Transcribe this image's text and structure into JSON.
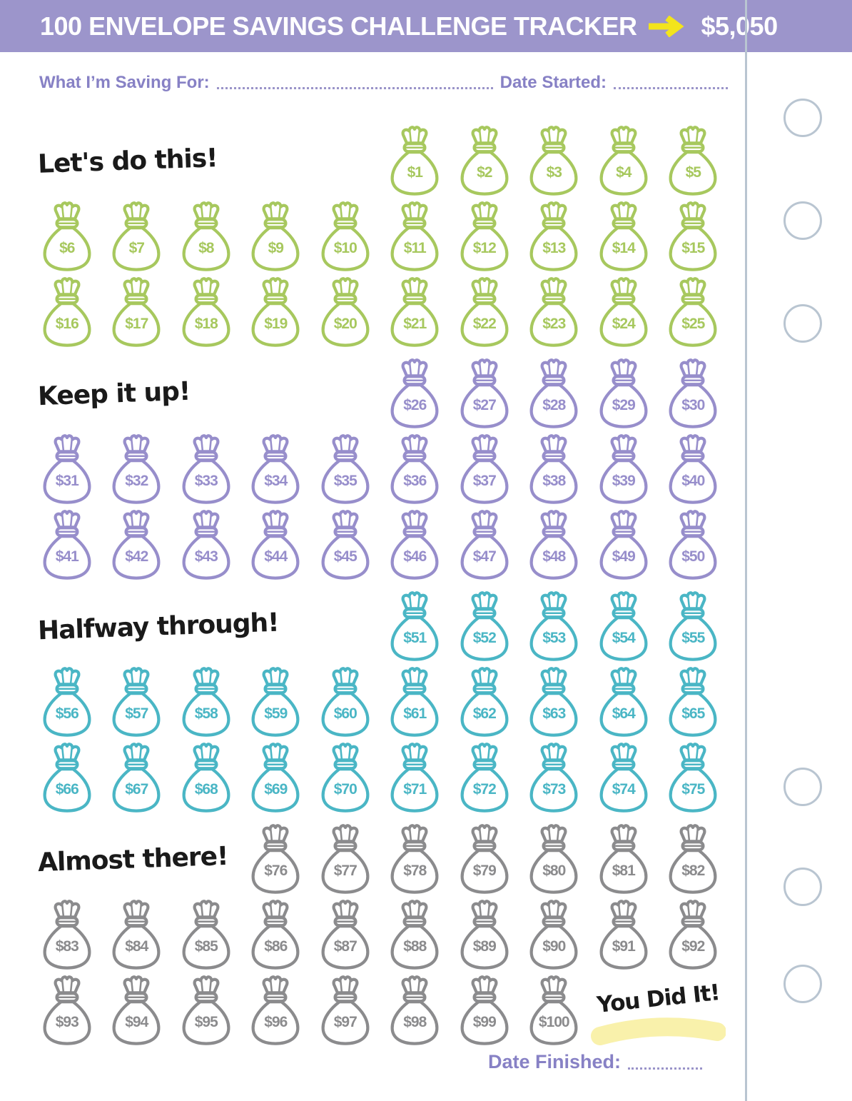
{
  "header": {
    "title": "100 ENVELOPE SAVINGS CHALLENGE TRACKER",
    "arrow_icon": "right-arrow",
    "total": "$5,050"
  },
  "top_fields": {
    "saving_for_label": "What I’m Saving For:",
    "saving_for_value": "",
    "date_started_label": "Date Started:",
    "date_started_value": ""
  },
  "footer": {
    "date_finished_label": "Date Finished:",
    "date_finished_value": ""
  },
  "completion": {
    "text": "You Did It!"
  },
  "colors": {
    "banner": "#9c95cb",
    "field_text": "#8781c5",
    "dotted_line": "#9a94c9",
    "arrow": "#f3e41c",
    "green": "#a7c85e",
    "purple": "#978ecb",
    "teal": "#4ab6c5",
    "gray": "#8b8b8d",
    "punch": "#b9c5d1",
    "highlight": "#f9f1ab",
    "heading_text": "#1a1a1a"
  },
  "sections": [
    {
      "heading": "Let's do this!",
      "color_key": "green",
      "rows": [
        {
          "offset": 5,
          "labels": [
            "$1",
            "$2",
            "$3",
            "$4",
            "$5"
          ]
        },
        {
          "offset": 0,
          "labels": [
            "$6",
            "$7",
            "$8",
            "$9",
            "$10",
            "$11",
            "$12",
            "$13",
            "$14",
            "$15"
          ]
        },
        {
          "offset": 0,
          "labels": [
            "$16",
            "$17",
            "$18",
            "$19",
            "$20",
            "$21",
            "$22",
            "$23",
            "$24",
            "$25"
          ]
        }
      ]
    },
    {
      "heading": "Keep it up!",
      "color_key": "purple",
      "rows": [
        {
          "offset": 5,
          "labels": [
            "$26",
            "$27",
            "$28",
            "$29",
            "$30"
          ]
        },
        {
          "offset": 0,
          "labels": [
            "$31",
            "$32",
            "$33",
            "$34",
            "$35",
            "$36",
            "$37",
            "$38",
            "$39",
            "$40"
          ]
        },
        {
          "offset": 0,
          "labels": [
            "$41",
            "$42",
            "$43",
            "$44",
            "$45",
            "$46",
            "$47",
            "$48",
            "$49",
            "$50"
          ]
        }
      ]
    },
    {
      "heading": "Halfway through!",
      "color_key": "teal",
      "rows": [
        {
          "offset": 5,
          "labels": [
            "$51",
            "$52",
            "$53",
            "$54",
            "$55"
          ]
        },
        {
          "offset": 0,
          "labels": [
            "$56",
            "$57",
            "$58",
            "$59",
            "$60",
            "$61",
            "$62",
            "$63",
            "$64",
            "$65"
          ]
        },
        {
          "offset": 0,
          "labels": [
            "$66",
            "$67",
            "$68",
            "$69",
            "$70",
            "$71",
            "$72",
            "$73",
            "$74",
            "$75"
          ]
        }
      ]
    },
    {
      "heading": "Almost there!",
      "color_key": "gray",
      "rows": [
        {
          "offset": 3,
          "labels": [
            "$76",
            "$77",
            "$78",
            "$79",
            "$80",
            "$81",
            "$82"
          ]
        },
        {
          "offset": 0,
          "labels": [
            "$83",
            "$84",
            "$85",
            "$86",
            "$87",
            "$88",
            "$89",
            "$90",
            "$91",
            "$92"
          ]
        },
        {
          "offset": 0,
          "labels": [
            "$93",
            "$94",
            "$95",
            "$96",
            "$97",
            "$98",
            "$99",
            "$100"
          ],
          "trailing": "completion"
        }
      ]
    }
  ],
  "punch_holes": {
    "count": 6
  }
}
